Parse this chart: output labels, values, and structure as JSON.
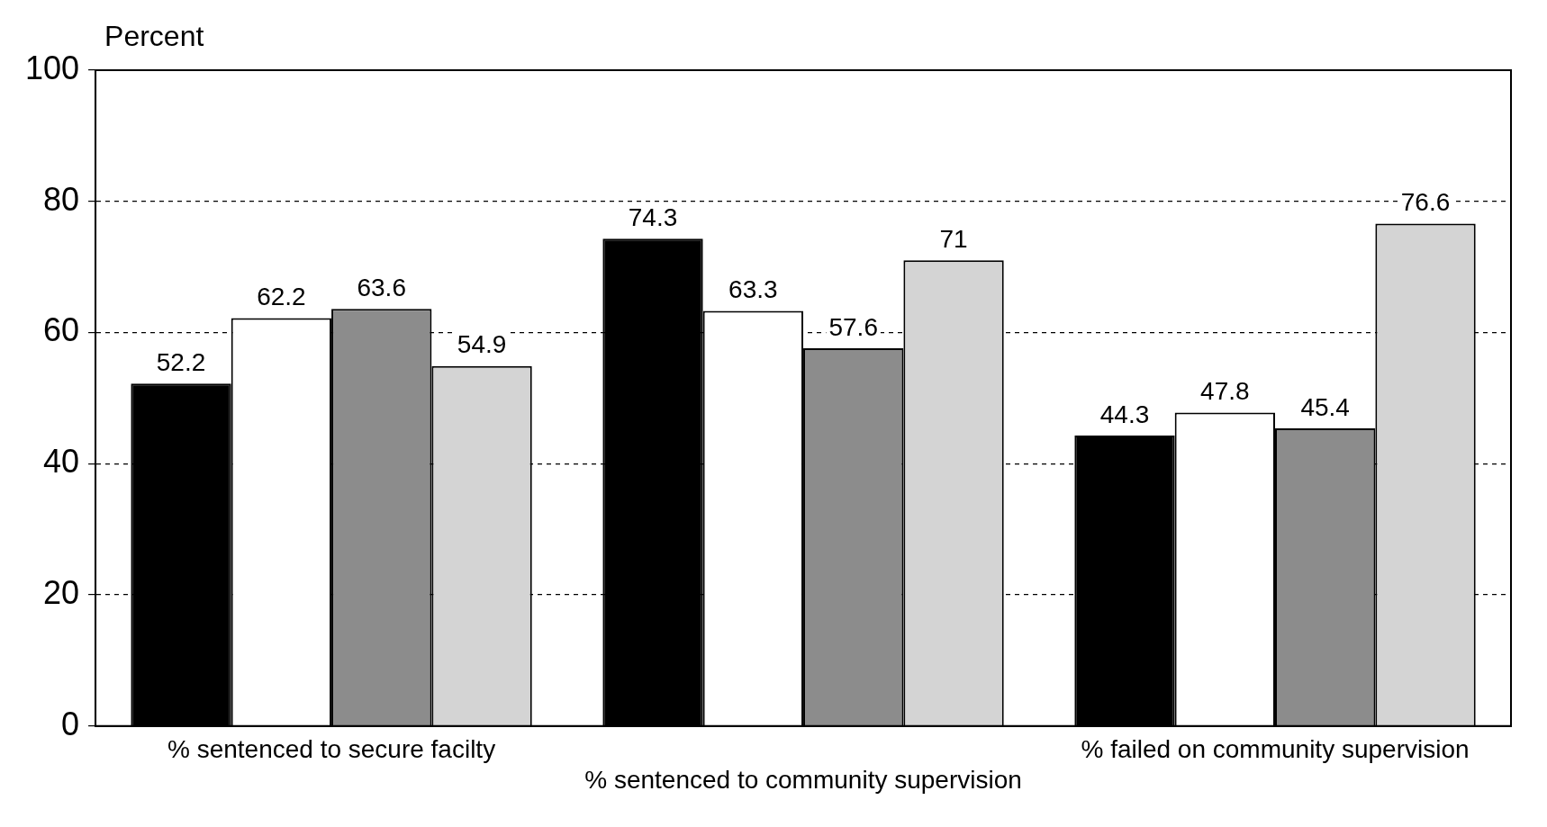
{
  "chart_data": {
    "type": "bar",
    "ylabel": "Percent",
    "categories": [
      "% sentenced to secure facilty",
      "% sentenced to community supervision",
      "% failed on community supervision"
    ],
    "series": [
      {
        "color": "#000000",
        "values": [
          52.2,
          74.3,
          44.3
        ]
      },
      {
        "color": "#ffffff",
        "values": [
          62.2,
          63.3,
          47.8
        ]
      },
      {
        "color": "#8c8c8c",
        "values": [
          63.6,
          57.6,
          45.4
        ]
      },
      {
        "color": "#d4d4d4",
        "values": [
          54.9,
          71,
          76.6
        ]
      }
    ],
    "ylim": [
      0,
      100
    ],
    "yticks": [
      0,
      20,
      40,
      60,
      80,
      100
    ],
    "grid": "y",
    "data_labels": true
  }
}
